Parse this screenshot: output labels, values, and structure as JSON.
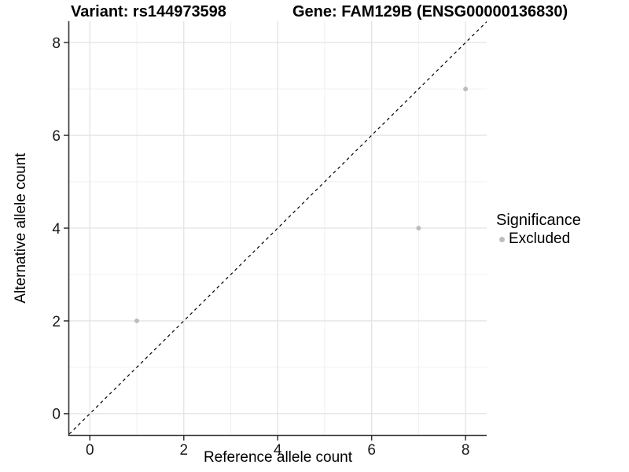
{
  "chart_data": {
    "type": "scatter",
    "titles": [
      "Variant: rs144973598",
      "Gene: FAM129B (ENSG00000136830)"
    ],
    "xlabel": "Reference allele count",
    "ylabel": "Alternative allele count",
    "xlim": [
      -0.44,
      8.45
    ],
    "ylim": [
      -0.46,
      8.46
    ],
    "x_ticks": [
      0,
      2,
      4,
      6,
      8
    ],
    "y_ticks": [
      0,
      2,
      4,
      6,
      8
    ],
    "x_minor_ticks": [
      1,
      3,
      5,
      7
    ],
    "y_minor_ticks": [
      1,
      3,
      5,
      7
    ],
    "grid": "major-and-minor",
    "series": [
      {
        "name": "Excluded",
        "color": "#bdbdbd",
        "points": [
          [
            1,
            2
          ],
          [
            7,
            4
          ],
          [
            8,
            7
          ]
        ]
      }
    ],
    "reference_line": {
      "type": "identity y=x",
      "style": "dashed",
      "color": "#000000"
    },
    "legend": {
      "title": "Significance",
      "position": "right",
      "items": [
        {
          "label": "Excluded",
          "color": "#bdbdbd"
        }
      ]
    },
    "style_colors": {
      "grid_major": "#e3e3e3",
      "grid_minor": "#f0f0f0",
      "axis_line": "#333333",
      "tick_text": "#1a1a1a",
      "point": "#bdbdbd"
    }
  }
}
